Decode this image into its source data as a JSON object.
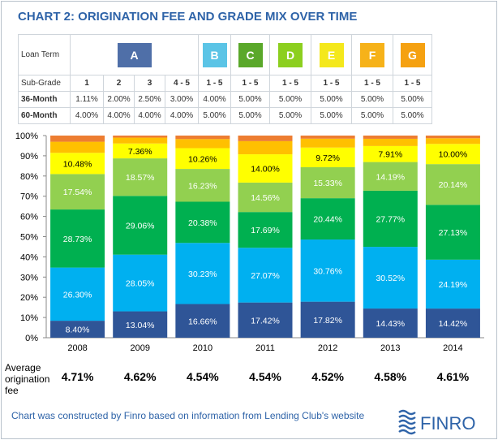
{
  "title": "CHART 2: ORIGINATION FEE AND GRADE MIX OVER TIME",
  "grade_table": {
    "loan_term_label": "Loan Term",
    "grades": [
      {
        "label": "A",
        "color": "#4f6fa8",
        "span": 4
      },
      {
        "label": "B",
        "color": "#5bc4e6",
        "span": 1
      },
      {
        "label": "C",
        "color": "#5aa82a",
        "span": 1
      },
      {
        "label": "D",
        "color": "#8ccf1f",
        "span": 1
      },
      {
        "label": "E",
        "color": "#f4e81c",
        "span": 1
      },
      {
        "label": "F",
        "color": "#f6b219",
        "span": 1
      },
      {
        "label": "G",
        "color": "#f5a111",
        "span": 1
      }
    ],
    "subgrade_label": "Sub-Grade",
    "subgrades": [
      "1",
      "2",
      "3",
      "4 - 5",
      "1 - 5",
      "1 - 5",
      "1 - 5",
      "1 - 5",
      "1 - 5",
      "1 - 5"
    ],
    "rows": [
      {
        "label": "36-Month",
        "values": [
          "1.11%",
          "2.00%",
          "2.50%",
          "3.00%",
          "4.00%",
          "5.00%",
          "5.00%",
          "5.00%",
          "5.00%",
          "5.00%"
        ]
      },
      {
        "label": "60-Month",
        "values": [
          "4.00%",
          "4.00%",
          "4.00%",
          "4.00%",
          "5.00%",
          "5.00%",
          "5.00%",
          "5.00%",
          "5.00%",
          "5.00%"
        ]
      }
    ]
  },
  "chart_data": {
    "type": "bar",
    "stacked": true,
    "categories": [
      "2008",
      "2009",
      "2010",
      "2011",
      "2012",
      "2013",
      "2014"
    ],
    "ylim": [
      0,
      100
    ],
    "yticks": [
      "0%",
      "10%",
      "20%",
      "30%",
      "40%",
      "50%",
      "60%",
      "70%",
      "80%",
      "90%",
      "100%"
    ],
    "grid": false,
    "series": [
      {
        "key": "A",
        "color": "#2f5597",
        "values": [
          8.4,
          13.04,
          16.66,
          17.42,
          17.82,
          14.43,
          14.42
        ],
        "labels": [
          "8.40%",
          "13.04%",
          "16.66%",
          "17.42%",
          "17.82%",
          "14.43%",
          "14.42%"
        ],
        "label_color": "#ffffff"
      },
      {
        "key": "B",
        "color": "#00b0f0",
        "values": [
          26.3,
          28.05,
          30.23,
          27.07,
          30.76,
          30.52,
          24.19
        ],
        "labels": [
          "26.30%",
          "28.05%",
          "30.23%",
          "27.07%",
          "30.76%",
          "30.52%",
          "24.19%"
        ],
        "label_color": "#ffffff"
      },
      {
        "key": "C",
        "color": "#00b050",
        "values": [
          28.73,
          29.06,
          20.38,
          17.69,
          20.44,
          27.77,
          27.13
        ],
        "labels": [
          "28.73%",
          "29.06%",
          "20.38%",
          "17.69%",
          "20.44%",
          "27.77%",
          "27.13%"
        ],
        "label_color": "#ffffff"
      },
      {
        "key": "D",
        "color": "#92d050",
        "values": [
          17.54,
          18.57,
          16.23,
          14.56,
          15.33,
          14.19,
          20.14
        ],
        "labels": [
          "17.54%",
          "18.57%",
          "16.23%",
          "14.56%",
          "15.33%",
          "14.19%",
          "20.14%"
        ],
        "label_color": "#ffffff"
      },
      {
        "key": "E",
        "color": "#ffff00",
        "values": [
          10.48,
          7.36,
          10.26,
          14.0,
          9.72,
          7.91,
          10.0
        ],
        "labels": [
          "10.48%",
          "7.36%",
          "10.26%",
          "14.00%",
          "9.72%",
          "7.91%",
          "10.00%"
        ],
        "label_color": "#000000"
      },
      {
        "key": "F",
        "color": "#ffc000",
        "values": [
          5.5,
          2.9,
          4.5,
          6.5,
          4.4,
          3.6,
          2.8
        ],
        "labels": [],
        "label_color": "#000000"
      },
      {
        "key": "G",
        "color": "#ed7d31",
        "values": [
          3.05,
          1.02,
          1.74,
          2.76,
          1.53,
          1.58,
          1.32
        ],
        "labels": [],
        "label_color": "#000000"
      }
    ]
  },
  "average_fee": {
    "label": "Average origination fee",
    "values": [
      "4.71%",
      "4.62%",
      "4.54%",
      "4.54%",
      "4.52%",
      "4.58%",
      "4.61%"
    ]
  },
  "footer": "Chart was constructed by Finro based on information from Lending Club's website",
  "logo": {
    "text": "FINRO",
    "icon": "finro-wave-logo-icon",
    "color": "#2e63a8"
  }
}
